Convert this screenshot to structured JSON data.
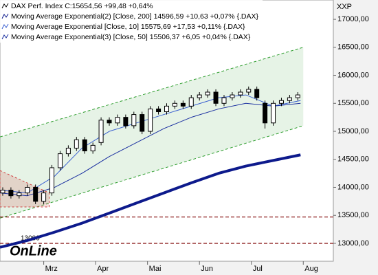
{
  "chart_data": {
    "type": "candlestick",
    "axis_label": "XXP",
    "watermark": "OnLine",
    "xlim": [
      0,
      122
    ],
    "xticks": [
      {
        "value": 16,
        "label": "Mrz"
      },
      {
        "value": 35,
        "label": "Apr"
      },
      {
        "value": 54,
        "label": "Mai"
      },
      {
        "value": 73,
        "label": "Jun"
      },
      {
        "value": 92,
        "label": "Jul"
      },
      {
        "value": 111,
        "label": "Aug"
      }
    ],
    "ylim": [
      12680,
      17345
    ],
    "yticks": [
      {
        "value": 13000,
        "label": "13000,00"
      },
      {
        "value": 13500,
        "label": "13500,00"
      },
      {
        "value": 14000,
        "label": "14000,00"
      },
      {
        "value": 14500,
        "label": "14500,00"
      },
      {
        "value": 15000,
        "label": "15000,00"
      },
      {
        "value": 15500,
        "label": "15500,00"
      },
      {
        "value": 16000,
        "label": "16000,00"
      },
      {
        "value": 16500,
        "label": "16500,00"
      },
      {
        "value": 17000,
        "label": "17000,00"
      }
    ],
    "price": {
      "name": "DAX Perf. Index C:15654,56 +99,48 +0,64%",
      "color": "#000000",
      "x": [
        1,
        4,
        7,
        10,
        13,
        16,
        19,
        22,
        25,
        28,
        31,
        34,
        37,
        40,
        43,
        46,
        49,
        52,
        55,
        58,
        61,
        64,
        67,
        70,
        73,
        76,
        79,
        82,
        85,
        88,
        91,
        94,
        97,
        100,
        103,
        106,
        109
      ],
      "open": [
        13900,
        13950,
        13850,
        13900,
        14000,
        13750,
        13900,
        14350,
        14600,
        14700,
        14850,
        14650,
        14800,
        15200,
        15150,
        15250,
        15100,
        15300,
        15000,
        15400,
        15350,
        15450,
        15500,
        15450,
        15600,
        15650,
        15700,
        15500,
        15600,
        15650,
        15700,
        15750,
        15500,
        15150,
        15500,
        15550,
        15600
      ],
      "high": [
        14000,
        14000,
        13950,
        14050,
        14050,
        13950,
        14400,
        14650,
        14750,
        14900,
        14900,
        14800,
        15250,
        15250,
        15300,
        15300,
        15350,
        15350,
        15450,
        15450,
        15500,
        15550,
        15550,
        15650,
        15700,
        15750,
        15750,
        15650,
        15700,
        15750,
        15800,
        15800,
        15550,
        15550,
        15600,
        15650,
        15700
      ],
      "low": [
        13850,
        13800,
        13800,
        13850,
        13700,
        13700,
        13850,
        14300,
        14550,
        14650,
        14600,
        14600,
        14750,
        15100,
        15100,
        15050,
        15050,
        14950,
        14950,
        15300,
        15300,
        15400,
        15400,
        15400,
        15550,
        15600,
        15450,
        15450,
        15550,
        15600,
        15650,
        15550,
        15050,
        15100,
        15450,
        15500,
        15550
      ],
      "close": [
        13950,
        13850,
        13900,
        14000,
        13750,
        13900,
        14350,
        14600,
        14700,
        14850,
        14650,
        14750,
        15200,
        15150,
        15250,
        15100,
        15300,
        15000,
        15400,
        15350,
        15450,
        15500,
        15450,
        15600,
        15650,
        15700,
        15500,
        15600,
        15650,
        15700,
        15750,
        15600,
        15150,
        15500,
        15550,
        15600,
        15650
      ]
    },
    "series": [
      {
        "name": "Moving Average Exponential(2) [Close, 200] 14596,59 +10,63 +0,07% {.DAX}",
        "color": "#0d1a8c",
        "width": 4,
        "x": [
          0,
          10,
          20,
          30,
          40,
          50,
          60,
          70,
          80,
          90,
          100,
          110
        ],
        "values": [
          12930,
          13050,
          13200,
          13360,
          13540,
          13720,
          13900,
          14080,
          14250,
          14380,
          14480,
          14580
        ]
      },
      {
        "name": "Moving Average Exponential [Close, 10] 15575,69 +17,53 +0,11% {.DAX}",
        "color": "#3a5fd0",
        "width": 1,
        "x": [
          0,
          10,
          20,
          30,
          40,
          50,
          60,
          70,
          80,
          90,
          100,
          110
        ],
        "values": [
          13950,
          13900,
          14200,
          14700,
          15000,
          15150,
          15300,
          15450,
          15600,
          15650,
          15450,
          15550
        ]
      },
      {
        "name": "Moving Average Exponential(3) [Close, 50] 15506,37 +6,05 +0,04% {.DAX}",
        "color": "#1a2fa0",
        "width": 1,
        "x": [
          0,
          10,
          20,
          30,
          40,
          50,
          60,
          70,
          80,
          90,
          100,
          110
        ],
        "values": [
          13900,
          13850,
          14000,
          14250,
          14550,
          14800,
          15050,
          15250,
          15400,
          15500,
          15450,
          15500
        ]
      }
    ],
    "channel": {
      "x": [
        0,
        111
      ],
      "upper": [
        14900,
        16500
      ],
      "lower": [
        13450,
        15100
      ],
      "color": "#2e9e2e"
    },
    "triangle": {
      "x": [
        0,
        18
      ],
      "upper": [
        14300,
        13900
      ],
      "lower": [
        13650,
        13650
      ],
      "color": "#d04040"
    },
    "hlines": [
      {
        "value": 13470,
        "color": "#8b1a1a"
      },
      {
        "value": 13000,
        "color": "#8b1a1a",
        "label": "13000"
      }
    ]
  }
}
